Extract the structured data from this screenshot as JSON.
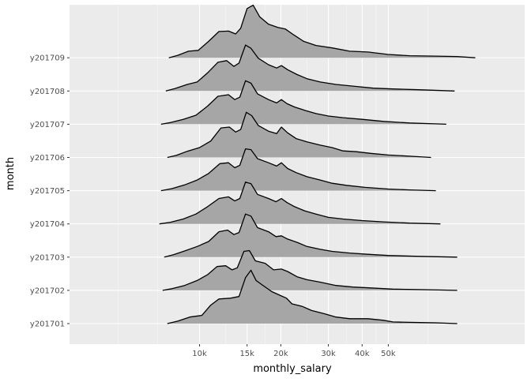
{
  "chart_data": {
    "type": "area",
    "subtype": "ridgeline",
    "title": "",
    "xlabel": "monthly_salary",
    "ylabel": "month",
    "x_scale": "log10",
    "x_ticks": [
      {
        "value": 10000,
        "label": "10k"
      },
      {
        "value": 15000,
        "label": "15k"
      },
      {
        "value": 20000,
        "label": "20k"
      },
      {
        "value": 30000,
        "label": "30k"
      },
      {
        "value": 40000,
        "label": "40k"
      },
      {
        "value": 50000,
        "label": "50k"
      }
    ],
    "x_minor_gridlines": [
      5000,
      7000,
      12500,
      17500,
      25000,
      35000,
      45000,
      70000
    ],
    "xlim": [
      3300,
      160000
    ],
    "grid": true,
    "legend": "none",
    "fill_color": "#a6a6a6",
    "line_color": "#000000",
    "panel_color": "#ebebeb",
    "categories": [
      "y201701",
      "y201702",
      "y201703",
      "y201704",
      "y201705",
      "y201706",
      "y201707",
      "y201708",
      "y201709"
    ],
    "series": [
      {
        "name": "y201701",
        "points": [
          [
            7600,
            0
          ],
          [
            8300,
            0.06
          ],
          [
            9200,
            0.16
          ],
          [
            10200,
            0.2
          ],
          [
            11000,
            0.45
          ],
          [
            11800,
            0.6
          ],
          [
            13000,
            0.62
          ],
          [
            14000,
            0.66
          ],
          [
            14800,
            1.12
          ],
          [
            15500,
            1.3
          ],
          [
            16200,
            1.05
          ],
          [
            17000,
            0.95
          ],
          [
            18500,
            0.78
          ],
          [
            20000,
            0.68
          ],
          [
            21000,
            0.62
          ],
          [
            22000,
            0.48
          ],
          [
            24000,
            0.42
          ],
          [
            26000,
            0.32
          ],
          [
            29000,
            0.24
          ],
          [
            32000,
            0.16
          ],
          [
            36000,
            0.12
          ],
          [
            42000,
            0.12
          ],
          [
            48000,
            0.08
          ],
          [
            52000,
            0.04
          ],
          [
            60000,
            0.03
          ],
          [
            75000,
            0.02
          ],
          [
            90000,
            0
          ]
        ]
      },
      {
        "name": "y201702",
        "points": [
          [
            7300,
            0
          ],
          [
            7900,
            0.04
          ],
          [
            8800,
            0.12
          ],
          [
            9800,
            0.24
          ],
          [
            10700,
            0.38
          ],
          [
            11600,
            0.58
          ],
          [
            12500,
            0.6
          ],
          [
            13200,
            0.5
          ],
          [
            13800,
            0.55
          ],
          [
            14600,
            0.95
          ],
          [
            15300,
            0.97
          ],
          [
            16100,
            0.72
          ],
          [
            17500,
            0.66
          ],
          [
            18800,
            0.5
          ],
          [
            20100,
            0.52
          ],
          [
            21200,
            0.46
          ],
          [
            23000,
            0.33
          ],
          [
            25000,
            0.26
          ],
          [
            28000,
            0.2
          ],
          [
            32000,
            0.12
          ],
          [
            37000,
            0.08
          ],
          [
            43000,
            0.06
          ],
          [
            52000,
            0.03
          ],
          [
            65000,
            0.02
          ],
          [
            90000,
            0
          ]
        ]
      },
      {
        "name": "y201703",
        "points": [
          [
            7400,
            0
          ],
          [
            8000,
            0.06
          ],
          [
            8800,
            0.15
          ],
          [
            9800,
            0.26
          ],
          [
            10800,
            0.38
          ],
          [
            11800,
            0.62
          ],
          [
            12700,
            0.66
          ],
          [
            13400,
            0.55
          ],
          [
            14000,
            0.6
          ],
          [
            14800,
            1.05
          ],
          [
            15500,
            1.0
          ],
          [
            16400,
            0.72
          ],
          [
            18000,
            0.62
          ],
          [
            19200,
            0.5
          ],
          [
            20100,
            0.52
          ],
          [
            21200,
            0.44
          ],
          [
            23000,
            0.36
          ],
          [
            25000,
            0.26
          ],
          [
            28000,
            0.19
          ],
          [
            31000,
            0.14
          ],
          [
            36000,
            0.1
          ],
          [
            42000,
            0.07
          ],
          [
            50000,
            0.04
          ],
          [
            65000,
            0.02
          ],
          [
            90000,
            0
          ]
        ]
      },
      {
        "name": "y201704",
        "points": [
          [
            7100,
            0
          ],
          [
            7800,
            0.04
          ],
          [
            8700,
            0.12
          ],
          [
            9700,
            0.24
          ],
          [
            10700,
            0.42
          ],
          [
            11800,
            0.62
          ],
          [
            12800,
            0.66
          ],
          [
            13500,
            0.56
          ],
          [
            14100,
            0.62
          ],
          [
            14800,
            1.02
          ],
          [
            15500,
            0.98
          ],
          [
            16400,
            0.72
          ],
          [
            18000,
            0.62
          ],
          [
            19200,
            0.54
          ],
          [
            20100,
            0.62
          ],
          [
            21100,
            0.52
          ],
          [
            22500,
            0.42
          ],
          [
            24500,
            0.32
          ],
          [
            27000,
            0.24
          ],
          [
            30000,
            0.16
          ],
          [
            34000,
            0.12
          ],
          [
            40000,
            0.08
          ],
          [
            48000,
            0.05
          ],
          [
            60000,
            0.02
          ],
          [
            78000,
            0
          ]
        ]
      },
      {
        "name": "y201705",
        "points": [
          [
            7200,
            0
          ],
          [
            7900,
            0.05
          ],
          [
            8800,
            0.14
          ],
          [
            9800,
            0.26
          ],
          [
            10800,
            0.42
          ],
          [
            11900,
            0.66
          ],
          [
            12800,
            0.68
          ],
          [
            13500,
            0.56
          ],
          [
            14100,
            0.62
          ],
          [
            14800,
            1.02
          ],
          [
            15500,
            1.0
          ],
          [
            16400,
            0.78
          ],
          [
            18000,
            0.68
          ],
          [
            19300,
            0.6
          ],
          [
            20100,
            0.68
          ],
          [
            21200,
            0.54
          ],
          [
            22800,
            0.44
          ],
          [
            25000,
            0.34
          ],
          [
            28000,
            0.26
          ],
          [
            31000,
            0.18
          ],
          [
            35000,
            0.13
          ],
          [
            41000,
            0.08
          ],
          [
            50000,
            0.04
          ],
          [
            60000,
            0.02
          ],
          [
            75000,
            0
          ]
        ]
      },
      {
        "name": "y201706",
        "points": [
          [
            7600,
            0
          ],
          [
            8200,
            0.05
          ],
          [
            9000,
            0.15
          ],
          [
            10000,
            0.24
          ],
          [
            11000,
            0.4
          ],
          [
            12000,
            0.72
          ],
          [
            12900,
            0.74
          ],
          [
            13600,
            0.62
          ],
          [
            14200,
            0.68
          ],
          [
            14900,
            1.1
          ],
          [
            15600,
            1.02
          ],
          [
            16500,
            0.78
          ],
          [
            18000,
            0.64
          ],
          [
            19300,
            0.58
          ],
          [
            20100,
            0.74
          ],
          [
            21200,
            0.6
          ],
          [
            22800,
            0.46
          ],
          [
            25000,
            0.38
          ],
          [
            28000,
            0.3
          ],
          [
            31000,
            0.24
          ],
          [
            34000,
            0.16
          ],
          [
            38000,
            0.14
          ],
          [
            43000,
            0.1
          ],
          [
            50000,
            0.06
          ],
          [
            60000,
            0.03
          ],
          [
            72000,
            0
          ]
        ]
      },
      {
        "name": "y201707",
        "points": [
          [
            7200,
            0
          ],
          [
            7800,
            0.04
          ],
          [
            8700,
            0.12
          ],
          [
            9700,
            0.22
          ],
          [
            10700,
            0.44
          ],
          [
            11700,
            0.68
          ],
          [
            12800,
            0.72
          ],
          [
            13500,
            0.6
          ],
          [
            14100,
            0.66
          ],
          [
            14800,
            1.06
          ],
          [
            15500,
            1.0
          ],
          [
            16400,
            0.74
          ],
          [
            18000,
            0.6
          ],
          [
            19300,
            0.52
          ],
          [
            20100,
            0.6
          ],
          [
            21100,
            0.5
          ],
          [
            22500,
            0.42
          ],
          [
            24500,
            0.34
          ],
          [
            27000,
            0.26
          ],
          [
            30000,
            0.2
          ],
          [
            34000,
            0.16
          ],
          [
            40000,
            0.12
          ],
          [
            48000,
            0.07
          ],
          [
            60000,
            0.03
          ],
          [
            82000,
            0
          ]
        ]
      },
      {
        "name": "y201708",
        "points": [
          [
            7500,
            0
          ],
          [
            8100,
            0.06
          ],
          [
            9000,
            0.16
          ],
          [
            9800,
            0.22
          ],
          [
            10700,
            0.44
          ],
          [
            11700,
            0.7
          ],
          [
            12600,
            0.74
          ],
          [
            13400,
            0.6
          ],
          [
            14000,
            0.68
          ],
          [
            14800,
            1.12
          ],
          [
            15500,
            1.04
          ],
          [
            16500,
            0.8
          ],
          [
            18000,
            0.64
          ],
          [
            19300,
            0.56
          ],
          [
            20100,
            0.62
          ],
          [
            21200,
            0.52
          ],
          [
            23000,
            0.4
          ],
          [
            25000,
            0.3
          ],
          [
            28000,
            0.22
          ],
          [
            32000,
            0.16
          ],
          [
            37000,
            0.12
          ],
          [
            44000,
            0.07
          ],
          [
            52000,
            0.05
          ],
          [
            65000,
            0.03
          ],
          [
            88000,
            0
          ]
        ]
      },
      {
        "name": "y201709",
        "points": [
          [
            7700,
            0
          ],
          [
            8300,
            0.06
          ],
          [
            9100,
            0.16
          ],
          [
            9900,
            0.18
          ],
          [
            10800,
            0.4
          ],
          [
            11800,
            0.64
          ],
          [
            12800,
            0.65
          ],
          [
            13600,
            0.58
          ],
          [
            14200,
            0.72
          ],
          [
            15000,
            1.2
          ],
          [
            15800,
            1.28
          ],
          [
            16700,
            1.0
          ],
          [
            18000,
            0.82
          ],
          [
            19500,
            0.74
          ],
          [
            20800,
            0.7
          ],
          [
            22300,
            0.56
          ],
          [
            24300,
            0.4
          ],
          [
            27000,
            0.3
          ],
          [
            31000,
            0.24
          ],
          [
            36000,
            0.16
          ],
          [
            42000,
            0.14
          ],
          [
            50000,
            0.08
          ],
          [
            60000,
            0.05
          ],
          [
            75000,
            0.04
          ],
          [
            90000,
            0.03
          ],
          [
            105000,
            0
          ]
        ]
      }
    ]
  }
}
